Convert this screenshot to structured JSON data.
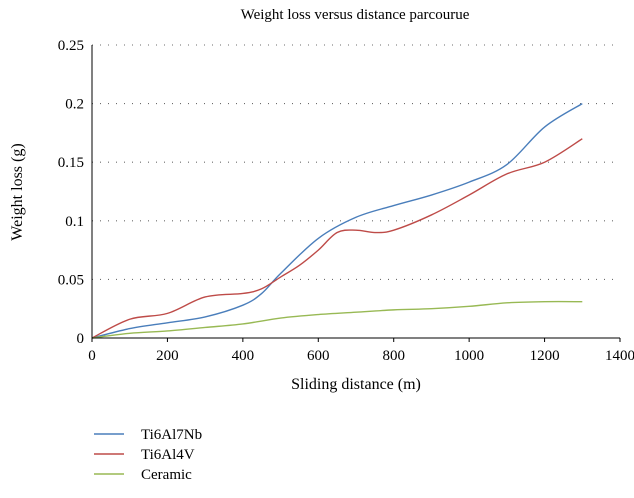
{
  "chart_data": {
    "type": "line",
    "title": "Weight loss versus distance parcourue",
    "xlabel": "Sliding distance (m)",
    "ylabel": "Weight loss (g)",
    "xlim": [
      0,
      1400
    ],
    "ylim": [
      0,
      0.25
    ],
    "xticks": [
      0,
      200,
      400,
      600,
      800,
      1000,
      1200,
      1400
    ],
    "yticks": [
      0,
      0.05,
      0.1,
      0.15,
      0.2,
      0.25
    ],
    "xtick_labels": [
      "0",
      "200",
      "400",
      "600",
      "800",
      "1000",
      "1200",
      "1400"
    ],
    "ytick_labels": [
      "0",
      "0.05",
      "0.1",
      "0.15",
      "0.2",
      "0.25"
    ],
    "grid": "horizontal dotted",
    "legend_position": "bottom-left",
    "series": [
      {
        "name": "Ti6Al7Nb",
        "color": "#4a7ebb",
        "x": [
          0,
          100,
          200,
          300,
          400,
          450,
          500,
          600,
          700,
          800,
          900,
          1000,
          1100,
          1200,
          1300
        ],
        "y": [
          0,
          0.008,
          0.013,
          0.018,
          0.028,
          0.038,
          0.055,
          0.085,
          0.103,
          0.113,
          0.122,
          0.133,
          0.148,
          0.18,
          0.2
        ]
      },
      {
        "name": "Ti6Al4V",
        "color": "#be4b48",
        "x": [
          0,
          100,
          200,
          300,
          400,
          450,
          500,
          550,
          600,
          650,
          700,
          750,
          800,
          900,
          1000,
          1100,
          1200,
          1300
        ],
        "y": [
          0,
          0.016,
          0.021,
          0.035,
          0.038,
          0.042,
          0.052,
          0.062,
          0.075,
          0.09,
          0.092,
          0.09,
          0.092,
          0.105,
          0.122,
          0.14,
          0.15,
          0.17
        ]
      },
      {
        "name": "Ceramic",
        "color": "#98b954",
        "x": [
          0,
          100,
          200,
          300,
          400,
          500,
          600,
          700,
          800,
          900,
          1000,
          1100,
          1200,
          1300
        ],
        "y": [
          0,
          0.004,
          0.006,
          0.009,
          0.012,
          0.017,
          0.02,
          0.022,
          0.024,
          0.025,
          0.027,
          0.03,
          0.031,
          0.031
        ]
      }
    ]
  }
}
